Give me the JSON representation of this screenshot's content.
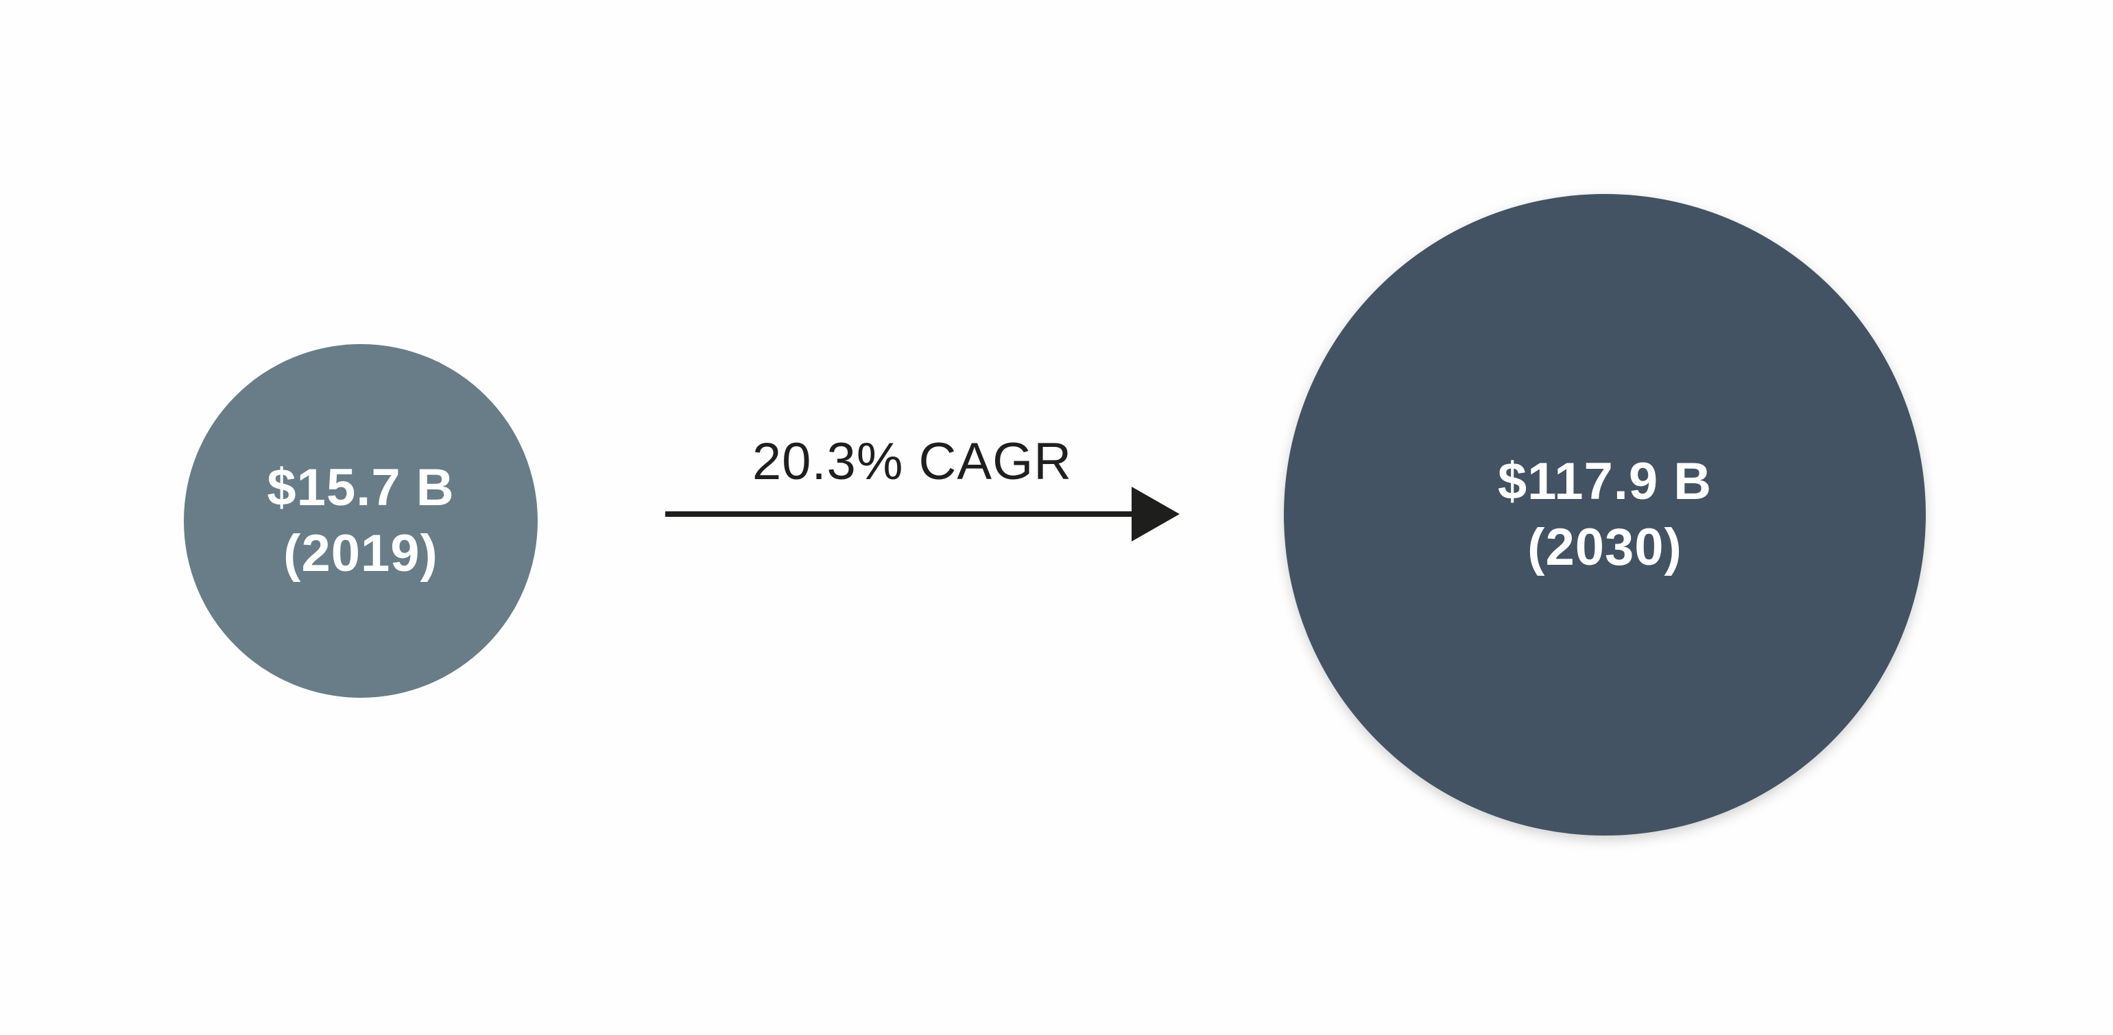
{
  "start": {
    "value": "$15.7 B",
    "year": "(2019)",
    "color": "#687d88"
  },
  "end": {
    "value": "$117.9 B",
    "year": "(2030)",
    "color": "#435363"
  },
  "growth": {
    "label": "20.3% CAGR",
    "arrow_color": "#1e1e1c"
  }
}
